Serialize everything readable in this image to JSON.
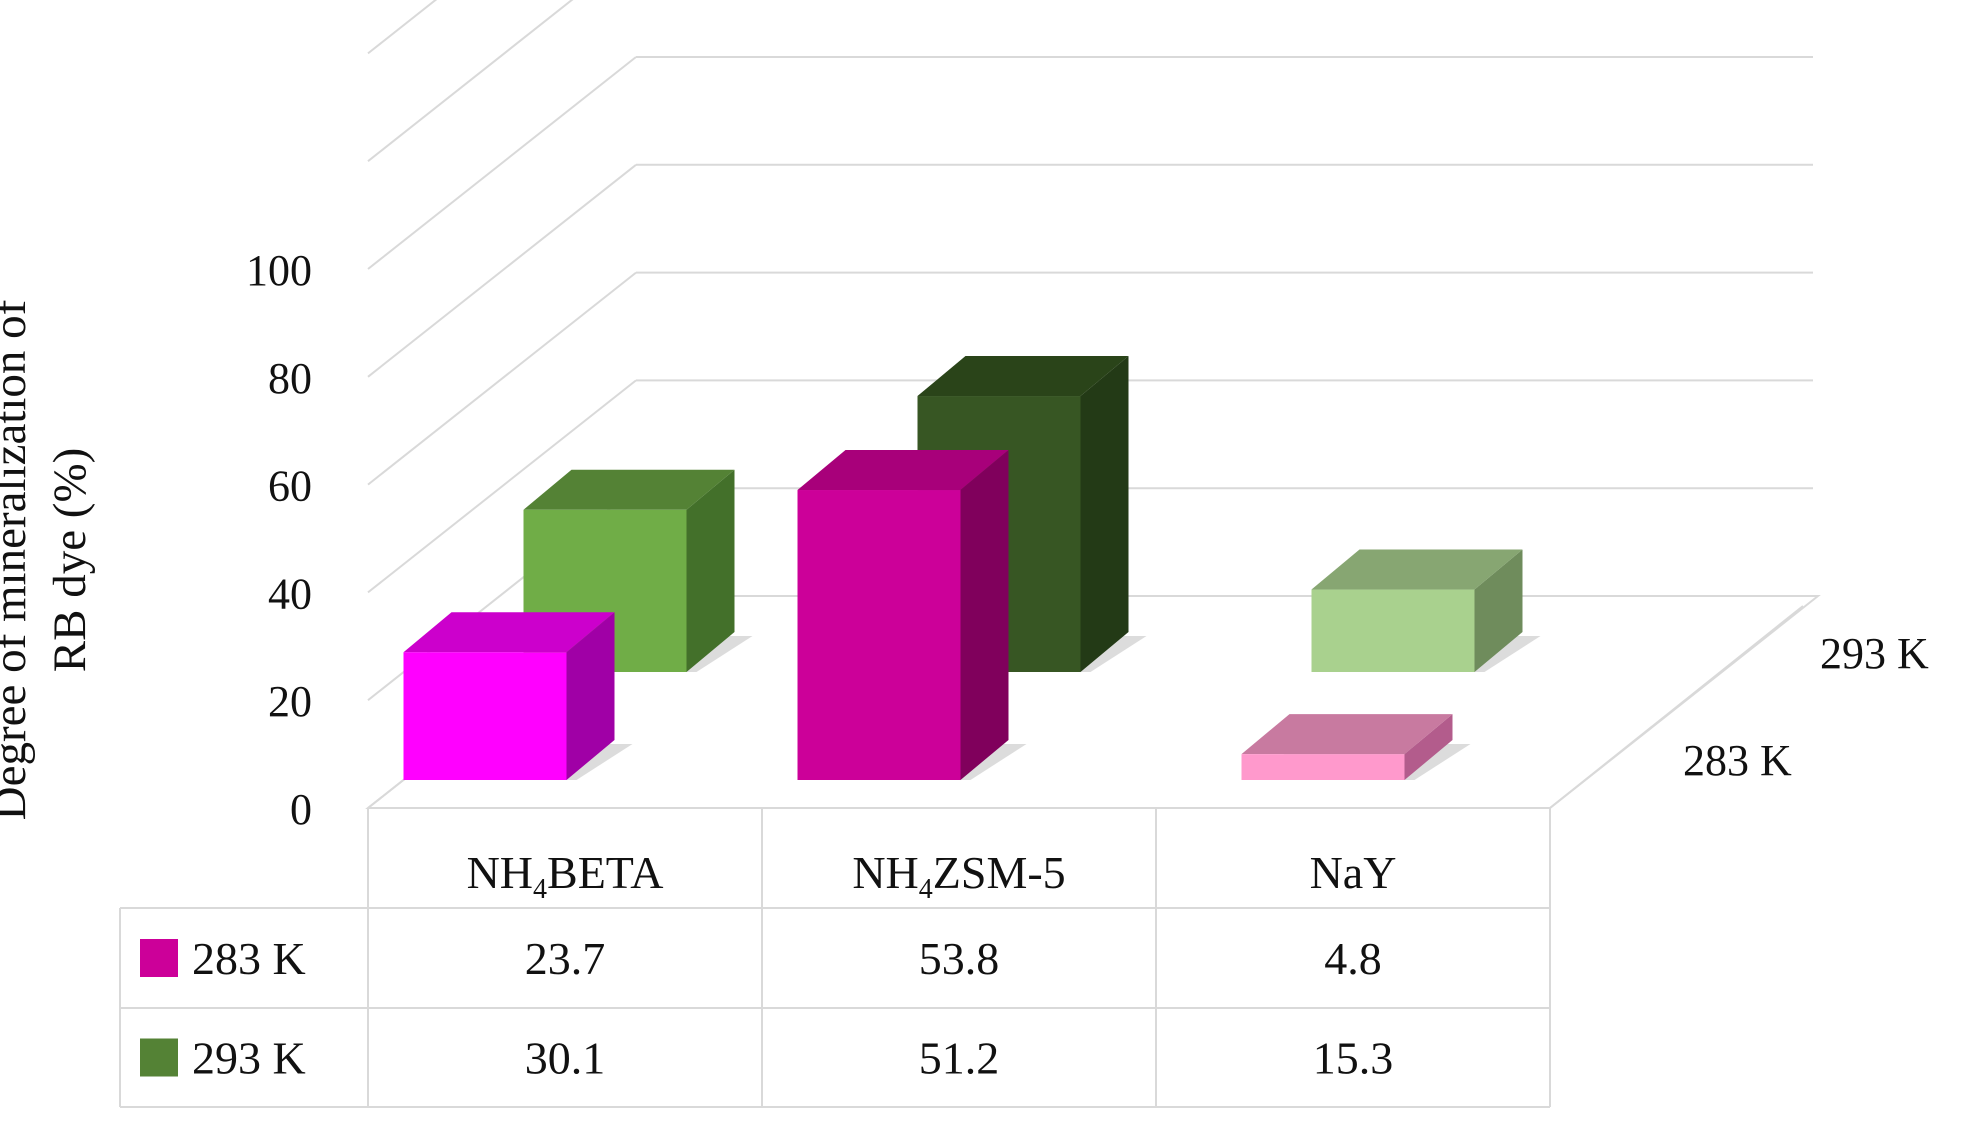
{
  "chart_data": {
    "type": "bar",
    "title": "",
    "ylabel_lines": [
      "Degree of mineralization of",
      "RB dye (%)"
    ],
    "categories": [
      "NH4BETA",
      "NH4ZSM-5",
      "NaY"
    ],
    "category_display": [
      {
        "pre": "NH",
        "sub": "4",
        "post": "BETA"
      },
      {
        "pre": "NH",
        "sub": "4",
        "post": "ZSM-5"
      },
      {
        "pre": "NaY",
        "sub": "",
        "post": ""
      }
    ],
    "ylim": [
      0,
      100
    ],
    "yticks": [
      "0",
      "20",
      "40",
      "60",
      "80",
      "100"
    ],
    "series": [
      {
        "name": "283  K",
        "values": [
          23.7,
          53.8,
          4.8
        ],
        "values_text": [
          "23.7",
          "53.8",
          "4.8"
        ]
      },
      {
        "name": "293 K",
        "values": [
          30.1,
          51.2,
          15.3
        ],
        "values_text": [
          "30.1",
          "51.2",
          "15.3"
        ]
      }
    ],
    "depth_labels": [
      "293 K",
      "283  K"
    ],
    "legend_placement": "table-below",
    "grid": true,
    "colors": {
      "s283": [
        {
          "front": "#ff00ff",
          "side": "#a000a6",
          "top": "#cc00cc"
        },
        {
          "front": "#cc0099",
          "side": "#80005c",
          "top": "#a8007a"
        },
        {
          "front": "#ff99cc",
          "side": "#b35c8c",
          "top": "#c87aa0"
        }
      ],
      "s293": [
        {
          "front": "#70ad47",
          "side": "#43702a",
          "top": "#548235"
        },
        {
          "front": "#375623",
          "side": "#233a16",
          "top": "#2a4419"
        },
        {
          "front": "#a9d18e",
          "side": "#6f8c5c",
          "top": "#87a672"
        }
      ],
      "legend283": "#cc0099",
      "legend293": "#548235",
      "grid": "#d9d9d9"
    }
  }
}
